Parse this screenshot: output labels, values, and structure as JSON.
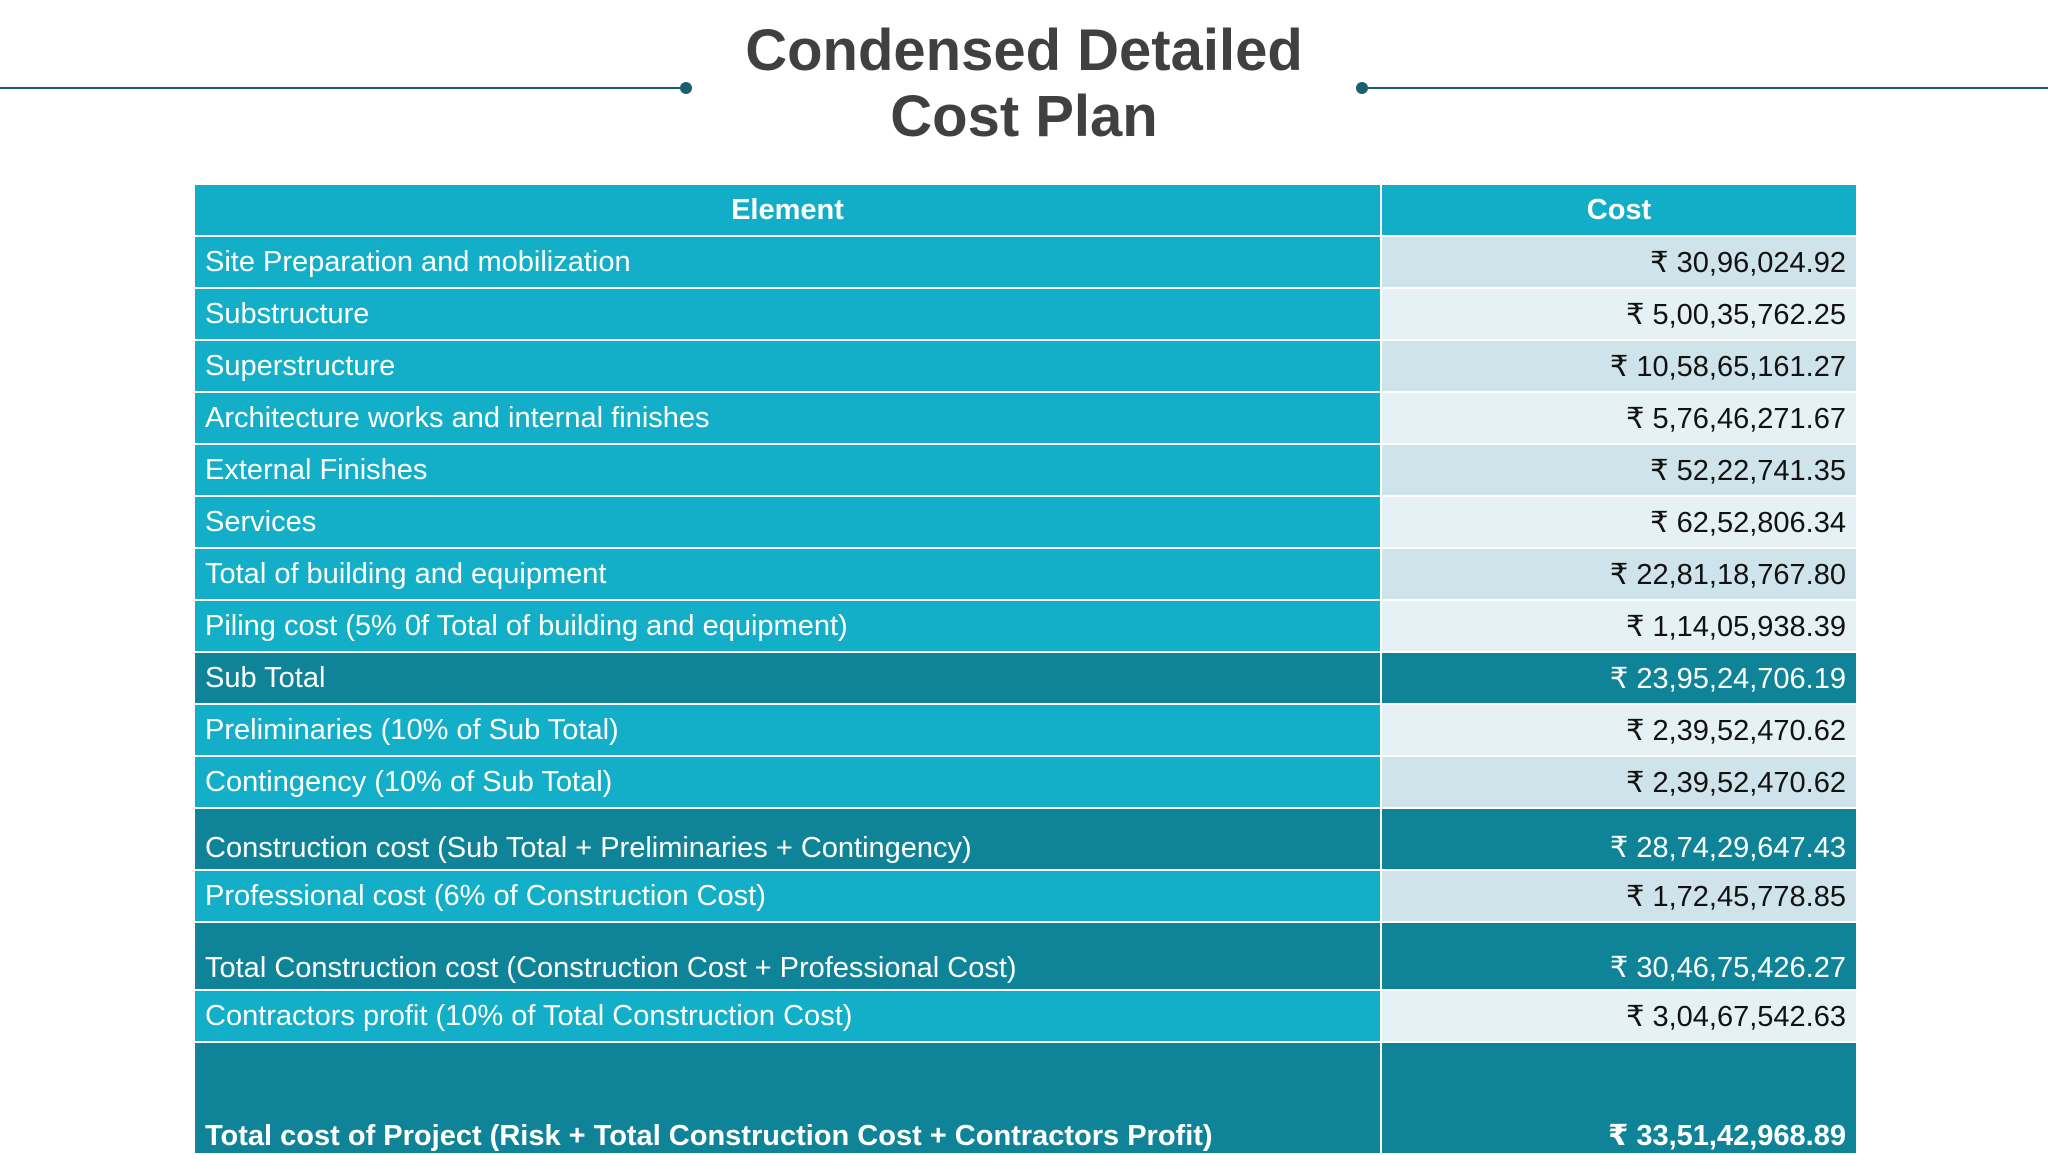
{
  "title": {
    "line1": "Condensed Detailed",
    "line2": "Cost Plan"
  },
  "table": {
    "headers": {
      "element": "Element",
      "cost": "Cost"
    },
    "rows": [
      {
        "element": "Site Preparation and mobilization",
        "cost": "₹ 30,96,024.92"
      },
      {
        "element": "Substructure",
        "cost": "₹ 5,00,35,762.25"
      },
      {
        "element": "Superstructure",
        "cost": "₹ 10,58,65,161.27"
      },
      {
        "element": "Architecture works and internal finishes",
        "cost": "₹ 5,76,46,271.67"
      },
      {
        "element": "External Finishes",
        "cost": "₹ 52,22,741.35"
      },
      {
        "element": "Services",
        "cost": "₹  62,52,806.34"
      },
      {
        "element": "Total of building and equipment",
        "cost": "₹  22,81,18,767.80"
      },
      {
        "element": "Piling cost (5% 0f Total of building and equipment)",
        "cost": "₹ 1,14,05,938.39"
      },
      {
        "element": "Sub Total",
        "cost": "₹ 23,95,24,706.19"
      },
      {
        "element": "Preliminaries (10% of Sub Total)",
        "cost": "₹ 2,39,52,470.62"
      },
      {
        "element": "Contingency (10% of Sub Total)",
        "cost": "₹ 2,39,52,470.62"
      },
      {
        "element": "Construction cost (Sub Total + Preliminaries + Contingency)",
        "cost": "₹ 28,74,29,647.43"
      },
      {
        "element": "Professional cost (6% of Construction Cost)",
        "cost": "₹ 1,72,45,778.85"
      },
      {
        "element": "Total Construction cost (Construction Cost + Professional Cost)",
        "cost": "₹ 30,46,75,426.27"
      },
      {
        "element": "Contractors profit (10% of Total Construction Cost)",
        "cost": "₹ 3,04,67,542.63"
      },
      {
        "element": "Total cost of Project (Risk + Total Construction Cost + Contractors Profit)",
        "cost": "₹ 33,51,42,968.89"
      }
    ]
  },
  "colors": {
    "accent_teal": "#13aec7",
    "total_teal": "#0f8499",
    "value_light_a": "#cfe3ea",
    "value_light_b": "#e5f1f5",
    "rule_color": "#1a5f6e",
    "title_color": "#404040"
  }
}
